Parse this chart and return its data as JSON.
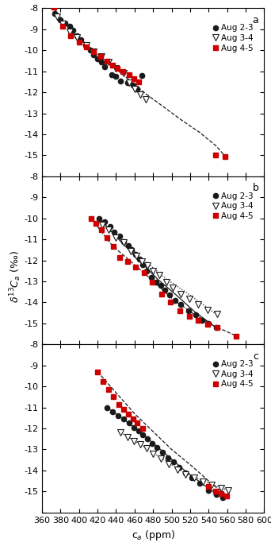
{
  "xlim": [
    360,
    600
  ],
  "ylim": [
    -16,
    -8
  ],
  "yticks": [
    -16,
    -15,
    -14,
    -13,
    -12,
    -11,
    -10,
    -9,
    -8
  ],
  "xticks": [
    360,
    380,
    400,
    420,
    440,
    460,
    480,
    500,
    520,
    540,
    560,
    580,
    600
  ],
  "panel_a": {
    "label": "a",
    "black_dots": {
      "x": [
        374,
        380,
        385,
        390,
        393,
        398,
        402,
        407,
        412,
        416,
        420,
        424,
        428,
        435,
        440,
        445,
        452,
        458,
        463,
        468
      ],
      "y": [
        -8.25,
        -8.55,
        -8.7,
        -8.85,
        -9.05,
        -9.3,
        -9.5,
        -9.75,
        -10.0,
        -10.2,
        -10.4,
        -10.55,
        -10.8,
        -11.15,
        -11.25,
        -11.45,
        -11.55,
        -11.65,
        -11.85,
        -11.2
      ]
    },
    "open_triangles": {
      "x": [
        376,
        382,
        390,
        398,
        408,
        416,
        424,
        432,
        440,
        448,
        454,
        460,
        466,
        472
      ],
      "y": [
        -8.4,
        -8.75,
        -9.1,
        -9.4,
        -9.75,
        -10.05,
        -10.3,
        -10.55,
        -10.85,
        -11.1,
        -11.55,
        -11.85,
        -12.1,
        -12.35
      ]
    },
    "red_squares": {
      "x": [
        373,
        382,
        391,
        400,
        408,
        416,
        423,
        430,
        436,
        441,
        447,
        454,
        459,
        464,
        547,
        558
      ],
      "y": [
        -7.95,
        -8.85,
        -9.3,
        -9.6,
        -9.85,
        -10.05,
        -10.3,
        -10.5,
        -10.7,
        -10.85,
        -11.0,
        -11.15,
        -11.35,
        -11.5,
        -15.0,
        -15.05
      ]
    },
    "fit_x": [
      373,
      390,
      410,
      430,
      450,
      470,
      490,
      510,
      530,
      548,
      558
    ],
    "fit_y": [
      -8.0,
      -9.0,
      -9.8,
      -10.55,
      -11.25,
      -12.0,
      -12.65,
      -13.3,
      -13.9,
      -14.55,
      -15.05
    ],
    "fit_style": "--"
  },
  "panel_b": {
    "label": "b",
    "black_dots": {
      "x": [
        422,
        428,
        434,
        438,
        444,
        448,
        453,
        457,
        461,
        465,
        469,
        473,
        478,
        483,
        488,
        493,
        498,
        504,
        510,
        518,
        526,
        533,
        540,
        548
      ],
      "y": [
        -10.0,
        -10.15,
        -10.4,
        -10.65,
        -10.85,
        -11.1,
        -11.3,
        -11.5,
        -11.7,
        -11.95,
        -12.2,
        -12.5,
        -12.8,
        -13.05,
        -13.2,
        -13.4,
        -13.65,
        -13.9,
        -14.1,
        -14.4,
        -14.6,
        -14.85,
        -15.0,
        -15.2
      ]
    },
    "open_triangles": {
      "x": [
        425,
        432,
        440,
        448,
        456,
        462,
        468,
        474,
        480,
        487,
        494,
        501,
        510,
        519,
        529,
        539,
        549
      ],
      "y": [
        -10.3,
        -10.55,
        -10.9,
        -11.15,
        -11.55,
        -11.8,
        -12.05,
        -12.25,
        -12.5,
        -12.7,
        -13.05,
        -13.3,
        -13.6,
        -13.85,
        -14.1,
        -14.35,
        -14.55
      ]
    },
    "red_squares": {
      "x": [
        413,
        418,
        424,
        430,
        437,
        444,
        452,
        461,
        470,
        479,
        489,
        499,
        509,
        519,
        529,
        539,
        549,
        570
      ],
      "y": [
        -10.0,
        -10.25,
        -10.55,
        -10.9,
        -11.35,
        -11.85,
        -12.05,
        -12.3,
        -12.6,
        -13.05,
        -13.6,
        -14.0,
        -14.4,
        -14.65,
        -14.85,
        -15.05,
        -15.2,
        -15.6
      ]
    },
    "fit_black_x": [
      422,
      445,
      465,
      485,
      505,
      525,
      548
    ],
    "fit_black_y": [
      -10.0,
      -11.1,
      -12.0,
      -12.9,
      -13.65,
      -14.45,
      -15.2
    ],
    "fit_black_style": "-",
    "fit_triangle_x": [
      425,
      450,
      472,
      493,
      515,
      540,
      549
    ],
    "fit_triangle_y": [
      -10.3,
      -11.2,
      -12.05,
      -12.85,
      -13.5,
      -14.3,
      -14.6
    ],
    "fit_triangle_style": ":",
    "fit_red_x": [
      413,
      436,
      457,
      478,
      500,
      522,
      545,
      570
    ],
    "fit_red_y": [
      -10.0,
      -11.3,
      -12.1,
      -12.9,
      -13.8,
      -14.5,
      -15.1,
      -15.6
    ],
    "fit_red_style": "--"
  },
  "panel_c": {
    "label": "c",
    "black_dots": {
      "x": [
        430,
        436,
        442,
        448,
        454,
        459,
        464,
        469,
        474,
        479,
        484,
        490,
        496,
        502,
        508,
        515,
        522,
        530,
        540,
        548,
        555
      ],
      "y": [
        -11.0,
        -11.2,
        -11.4,
        -11.55,
        -11.75,
        -11.95,
        -12.1,
        -12.3,
        -12.5,
        -12.7,
        -12.9,
        -13.15,
        -13.4,
        -13.6,
        -13.85,
        -14.1,
        -14.35,
        -14.6,
        -14.95,
        -15.15,
        -15.3
      ]
    },
    "open_triangles": {
      "x": [
        445,
        452,
        459,
        466,
        473,
        480,
        488,
        497,
        506,
        515,
        524,
        534,
        543,
        553,
        561
      ],
      "y": [
        -12.2,
        -12.4,
        -12.6,
        -12.75,
        -12.95,
        -13.2,
        -13.45,
        -13.7,
        -13.95,
        -14.2,
        -14.35,
        -14.55,
        -14.7,
        -14.85,
        -14.95
      ]
    },
    "red_squares": {
      "x": [
        420,
        426,
        432,
        437,
        443,
        448,
        453,
        458,
        463,
        469,
        540,
        547,
        553,
        559
      ],
      "y": [
        -9.3,
        -9.75,
        -10.15,
        -10.5,
        -10.85,
        -11.1,
        -11.3,
        -11.55,
        -11.75,
        -12.0,
        -14.75,
        -15.0,
        -15.1,
        -15.2
      ]
    },
    "fit_black_x": [
      430,
      452,
      472,
      493,
      514,
      535,
      555
    ],
    "fit_black_y": [
      -11.0,
      -11.7,
      -12.4,
      -13.2,
      -14.0,
      -14.7,
      -15.3
    ],
    "fit_black_style": "-",
    "fit_triangle_x": [
      445,
      466,
      487,
      508,
      529,
      552,
      561
    ],
    "fit_triangle_y": [
      -12.2,
      -12.75,
      -13.35,
      -13.95,
      -14.4,
      -14.8,
      -14.95
    ],
    "fit_triangle_style": ":",
    "fit_red_x": [
      420,
      440,
      460,
      480,
      500,
      522,
      545,
      560
    ],
    "fit_red_y": [
      -9.3,
      -10.3,
      -11.3,
      -12.15,
      -13.0,
      -13.8,
      -14.7,
      -15.2
    ],
    "fit_red_style": "--"
  },
  "ylabel": "$\\delta^{13}C_a$ (‰)",
  "xlabel": "c$_a$ (ppm)",
  "black_color": "#1a1a1a",
  "red_color": "#cc0000",
  "marker_size": 4.5,
  "legend_labels": [
    "Aug 2-3",
    "Aug 3-4",
    "Aug 4-5"
  ]
}
